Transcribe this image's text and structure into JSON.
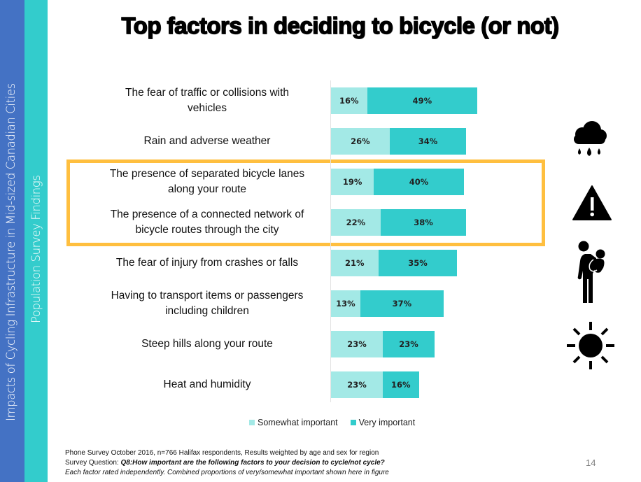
{
  "sidebar": {
    "main_title": "Impacts of Cycling Infrastructure in Mid-sized Canadian Cities",
    "section_title": "Population Survey Findings",
    "colors": {
      "outer": "#4472c4",
      "inner": "#33cccc"
    }
  },
  "slide": {
    "title": "Top factors in deciding to bicycle (or not)",
    "page_number": "14",
    "highlight_color": "#ffbf3f"
  },
  "chart_data": {
    "type": "bar",
    "orientation": "horizontal",
    "stacked": true,
    "title": "Top factors in deciding to bicycle (or not)",
    "xlabel": "",
    "ylabel": "",
    "xlim": [
      0,
      100
    ],
    "unit": "%",
    "grid": false,
    "legend_position": "bottom",
    "categories": [
      "The fear of traffic or collisions with vehicles",
      "Rain and adverse weather",
      "The presence of separated bicycle lanes along your route",
      "The presence of a connected network of bicycle routes through the city",
      "The fear of injury from crashes or falls",
      "Having to transport items or passengers including children",
      "Steep hills along your route",
      "Heat and humidity"
    ],
    "category_labels_display": [
      [
        "The fear of traffic or collisions with",
        "vehicles"
      ],
      [
        "Rain and adverse weather"
      ],
      [
        "The presence of separated bicycle lanes",
        "along your route"
      ],
      [
        "The presence of a connected network of",
        "bicycle routes through the city"
      ],
      [
        "The fear of injury from crashes or falls"
      ],
      [
        "Having to transport items or passengers",
        "including children"
      ],
      [
        "Steep hills along your route"
      ],
      [
        "Heat and humidity"
      ]
    ],
    "series": [
      {
        "name": "Somewhat important",
        "color": "#a3e9e6",
        "values": [
          16,
          26,
          19,
          22,
          21,
          13,
          23,
          23
        ]
      },
      {
        "name": "Very important",
        "color": "#33cccc",
        "values": [
          49,
          34,
          40,
          38,
          35,
          37,
          23,
          16
        ]
      }
    ],
    "highlighted_categories": [
      2,
      3
    ]
  },
  "icons": [
    {
      "name": "rain-cloud-icon",
      "row": 1
    },
    {
      "name": "warning-triangle-icon",
      "row": 3
    },
    {
      "name": "parent-carrying-child-icon",
      "row": 5
    },
    {
      "name": "sun-icon",
      "row": 7
    }
  ],
  "footnote": {
    "line1": "Phone Survey October 2016, n=766 Halifax respondents, Results weighted by age and sex for region",
    "line2_prefix": "Survey Question: ",
    "line2_question": "Q8:How important are the following factors to your decision to cycle/not cycle?",
    "line3": "Each factor rated independently. Combined proportions of very/somewhat important shown here in figure"
  }
}
